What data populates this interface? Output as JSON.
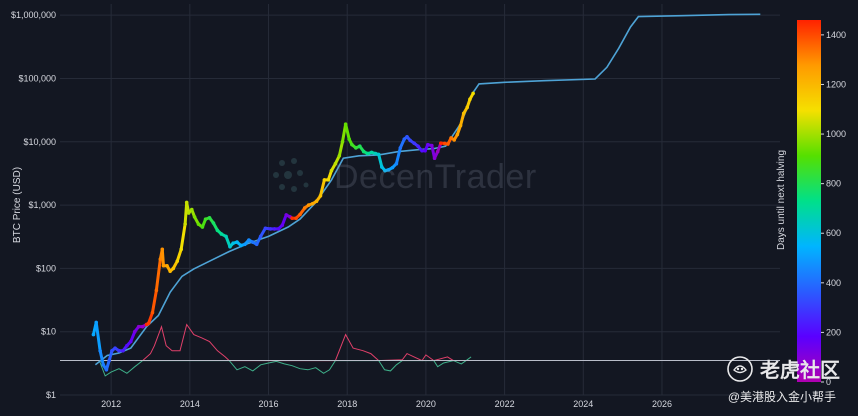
{
  "chart_data": {
    "type": "scatter",
    "title": "",
    "xlabel": "",
    "ylabel": "BTC Price (USD)",
    "yscale": "log",
    "xlim": [
      2010.7,
      2029.0
    ],
    "ylim": [
      1,
      1500000
    ],
    "x_ticks": [
      2012,
      2014,
      2016,
      2018,
      2020,
      2022,
      2024,
      2026
    ],
    "x_tick_labels": [
      "2012",
      "2014",
      "2016",
      "2018",
      "2020",
      "2022",
      "2024",
      "2026"
    ],
    "y_ticks": [
      1,
      10,
      100,
      1000,
      10000,
      100000,
      1000000
    ],
    "y_tick_labels": [
      "$1",
      "$10",
      "$100",
      "$1,000",
      "$10,000",
      "$100,000",
      "$1,000,000"
    ],
    "colorbar": {
      "label": "Days until next halving",
      "range": [
        0,
        1460
      ],
      "ticks": [
        0,
        200,
        400,
        600,
        800,
        1000,
        1200,
        1400
      ],
      "tick_labels": [
        "0",
        "200",
        "400",
        "600",
        "800",
        "1000",
        "1200",
        "1400"
      ],
      "colors": [
        "#b000b0",
        "#5a00ff",
        "#2a5cff",
        "#00b5ff",
        "#00e08a",
        "#55e000",
        "#f5e000",
        "#ff9a00",
        "#ff2200"
      ]
    },
    "series": [
      {
        "kind": "price_colored_by_days_until_halving",
        "points": [
          [
            2011.55,
            9,
            520
          ],
          [
            2011.62,
            14,
            500
          ],
          [
            2011.72,
            5,
            460
          ],
          [
            2011.8,
            3,
            430
          ],
          [
            2011.88,
            2.5,
            400
          ],
          [
            2011.95,
            3.5,
            370
          ],
          [
            2012.02,
            5,
            340
          ],
          [
            2012.1,
            5.5,
            310
          ],
          [
            2012.2,
            5,
            280
          ],
          [
            2012.3,
            5,
            240
          ],
          [
            2012.4,
            6,
            200
          ],
          [
            2012.5,
            7,
            160
          ],
          [
            2012.6,
            10,
            120
          ],
          [
            2012.7,
            12,
            80
          ],
          [
            2012.8,
            12,
            50
          ],
          [
            2012.9,
            13,
            1450
          ],
          [
            2012.95,
            13.5,
            1420
          ],
          [
            2013.05,
            20,
            1380
          ],
          [
            2013.15,
            45,
            1350
          ],
          [
            2013.25,
            140,
            1310
          ],
          [
            2013.3,
            200,
            1290
          ],
          [
            2013.33,
            110,
            1270
          ],
          [
            2013.42,
            110,
            1240
          ],
          [
            2013.5,
            90,
            1200
          ],
          [
            2013.58,
            100,
            1170
          ],
          [
            2013.68,
            130,
            1130
          ],
          [
            2013.78,
            200,
            1090
          ],
          [
            2013.88,
            500,
            1050
          ],
          [
            2013.92,
            1100,
            1040
          ],
          [
            2013.97,
            750,
            1020
          ],
          [
            2014.05,
            850,
            990
          ],
          [
            2014.12,
            650,
            960
          ],
          [
            2014.22,
            500,
            930
          ],
          [
            2014.32,
            450,
            890
          ],
          [
            2014.4,
            600,
            860
          ],
          [
            2014.5,
            630,
            820
          ],
          [
            2014.6,
            520,
            780
          ],
          [
            2014.7,
            400,
            740
          ],
          [
            2014.8,
            350,
            700
          ],
          [
            2014.92,
            320,
            660
          ],
          [
            2015.02,
            220,
            620
          ],
          [
            2015.1,
            250,
            590
          ],
          [
            2015.2,
            260,
            560
          ],
          [
            2015.3,
            230,
            530
          ],
          [
            2015.4,
            240,
            490
          ],
          [
            2015.5,
            280,
            460
          ],
          [
            2015.6,
            260,
            420
          ],
          [
            2015.7,
            240,
            390
          ],
          [
            2015.8,
            320,
            350
          ],
          [
            2015.92,
            430,
            310
          ],
          [
            2016.05,
            420,
            270
          ],
          [
            2016.15,
            420,
            230
          ],
          [
            2016.25,
            420,
            200
          ],
          [
            2016.35,
            480,
            160
          ],
          [
            2016.45,
            700,
            120
          ],
          [
            2016.55,
            650,
            80
          ],
          [
            2016.6,
            620,
            1440
          ],
          [
            2016.7,
            620,
            1400
          ],
          [
            2016.8,
            710,
            1360
          ],
          [
            2016.92,
            900,
            1320
          ],
          [
            2017.02,
            1000,
            1280
          ],
          [
            2017.12,
            1050,
            1240
          ],
          [
            2017.22,
            1150,
            1210
          ],
          [
            2017.32,
            1400,
            1170
          ],
          [
            2017.42,
            2500,
            1130
          ],
          [
            2017.52,
            2500,
            1100
          ],
          [
            2017.6,
            3500,
            1060
          ],
          [
            2017.7,
            4500,
            1030
          ],
          [
            2017.8,
            6000,
            990
          ],
          [
            2017.88,
            10000,
            960
          ],
          [
            2017.96,
            19000,
            930
          ],
          [
            2018.05,
            11000,
            900
          ],
          [
            2018.12,
            9000,
            870
          ],
          [
            2018.22,
            8000,
            840
          ],
          [
            2018.32,
            8500,
            800
          ],
          [
            2018.42,
            7000,
            760
          ],
          [
            2018.52,
            6500,
            720
          ],
          [
            2018.62,
            6800,
            690
          ],
          [
            2018.72,
            6500,
            650
          ],
          [
            2018.8,
            6300,
            620
          ],
          [
            2018.88,
            4000,
            590
          ],
          [
            2018.96,
            3500,
            560
          ],
          [
            2019.05,
            3600,
            520
          ],
          [
            2019.15,
            3900,
            490
          ],
          [
            2019.25,
            4500,
            450
          ],
          [
            2019.35,
            8000,
            410
          ],
          [
            2019.45,
            11000,
            380
          ],
          [
            2019.52,
            12000,
            350
          ],
          [
            2019.6,
            10500,
            320
          ],
          [
            2019.7,
            9500,
            290
          ],
          [
            2019.8,
            8500,
            250
          ],
          [
            2019.9,
            7200,
            210
          ],
          [
            2019.98,
            7200,
            180
          ],
          [
            2020.05,
            9000,
            150
          ],
          [
            2020.15,
            8700,
            110
          ],
          [
            2020.22,
            5500,
            80
          ],
          [
            2020.3,
            7000,
            40
          ],
          [
            2020.38,
            9500,
            1450
          ],
          [
            2020.48,
            9400,
            1400
          ],
          [
            2020.56,
            9200,
            1370
          ],
          [
            2020.64,
            11500,
            1330
          ],
          [
            2020.72,
            10700,
            1290
          ],
          [
            2020.8,
            13000,
            1250
          ],
          [
            2020.88,
            18000,
            1220
          ],
          [
            2020.96,
            28000,
            1180
          ],
          [
            2021.05,
            35000,
            1150
          ],
          [
            2021.12,
            47000,
            1120
          ],
          [
            2021.2,
            58000,
            1090
          ]
        ]
      },
      {
        "kind": "model_line",
        "color": "#4ea3d6",
        "points": [
          [
            2011.6,
            3,
            null
          ],
          [
            2011.9,
            4.2,
            null
          ],
          [
            2012.2,
            4.6,
            null
          ],
          [
            2012.5,
            5.5,
            null
          ],
          [
            2012.9,
            12,
            null
          ],
          [
            2013.2,
            18,
            null
          ],
          [
            2013.5,
            42,
            null
          ],
          [
            2013.8,
            75,
            null
          ],
          [
            2014.1,
            98,
            null
          ],
          [
            2014.5,
            130,
            null
          ],
          [
            2015.0,
            185,
            null
          ],
          [
            2015.5,
            250,
            null
          ],
          [
            2016.0,
            320,
            null
          ],
          [
            2016.5,
            450,
            null
          ],
          [
            2016.8,
            600,
            null
          ],
          [
            2017.2,
            1100,
            null
          ],
          [
            2017.6,
            2500,
            null
          ],
          [
            2017.9,
            5500,
            null
          ],
          [
            2018.3,
            6000,
            null
          ],
          [
            2018.8,
            6200,
            null
          ],
          [
            2019.3,
            7000,
            null
          ],
          [
            2019.8,
            7500,
            null
          ],
          [
            2020.2,
            7800,
            null
          ],
          [
            2020.5,
            8500,
            null
          ],
          [
            2020.9,
            20000,
            null
          ],
          [
            2021.2,
            60000,
            null
          ],
          [
            2021.35,
            82000,
            null
          ],
          [
            2022.0,
            87000,
            null
          ],
          [
            2023.0,
            92000,
            null
          ],
          [
            2024.3,
            98000,
            null
          ],
          [
            2024.6,
            150000,
            null
          ],
          [
            2024.9,
            300000,
            null
          ],
          [
            2025.2,
            650000,
            null
          ],
          [
            2025.4,
            950000,
            null
          ],
          [
            2026.5,
            980000,
            null
          ],
          [
            2027.7,
            1020000,
            null
          ],
          [
            2028.5,
            1030000,
            null
          ]
        ]
      },
      {
        "kind": "oscillator_above_baseline",
        "color": "#e0406a",
        "baseline": 3.5,
        "points": [
          [
            2012.8,
            3.5,
            null
          ],
          [
            2013.0,
            4.5,
            null
          ],
          [
            2013.1,
            6,
            null
          ],
          [
            2013.28,
            12,
            null
          ],
          [
            2013.4,
            6,
            null
          ],
          [
            2013.55,
            5,
            null
          ],
          [
            2013.75,
            5,
            null
          ],
          [
            2013.92,
            13,
            null
          ],
          [
            2014.1,
            9,
            null
          ],
          [
            2014.3,
            8,
            null
          ],
          [
            2014.5,
            7,
            null
          ],
          [
            2014.7,
            5,
            null
          ],
          [
            2014.9,
            4,
            null
          ],
          [
            2015.0,
            3.5,
            null
          ],
          [
            2017.7,
            3.5,
            null
          ],
          [
            2017.96,
            9,
            null
          ],
          [
            2018.15,
            5.5,
            null
          ],
          [
            2018.4,
            5,
            null
          ],
          [
            2018.6,
            4.5,
            null
          ],
          [
            2018.8,
            3.5,
            null
          ],
          [
            2019.4,
            3.6,
            null
          ],
          [
            2019.52,
            4.5,
            null
          ],
          [
            2019.7,
            4,
            null
          ],
          [
            2019.9,
            3.5,
            null
          ],
          [
            2020.0,
            4.3,
            null
          ],
          [
            2020.2,
            3.5,
            null
          ],
          [
            2020.55,
            4,
            null
          ],
          [
            2020.7,
            3.5,
            null
          ]
        ]
      },
      {
        "kind": "oscillator_below_baseline",
        "color": "#3fb08a",
        "baseline": 3.5,
        "points": [
          [
            2011.7,
            3.5,
            null
          ],
          [
            2011.85,
            2,
            null
          ],
          [
            2012.0,
            2.3,
            null
          ],
          [
            2012.2,
            2.6,
            null
          ],
          [
            2012.4,
            2.2,
            null
          ],
          [
            2012.6,
            2.8,
            null
          ],
          [
            2012.8,
            3.5,
            null
          ],
          [
            2015.0,
            3.5,
            null
          ],
          [
            2015.2,
            2.5,
            null
          ],
          [
            2015.4,
            2.8,
            null
          ],
          [
            2015.6,
            2.4,
            null
          ],
          [
            2015.8,
            3,
            null
          ],
          [
            2016.0,
            3.2,
            null
          ],
          [
            2016.2,
            3.4,
            null
          ],
          [
            2016.4,
            3.1,
            null
          ],
          [
            2016.6,
            2.9,
            null
          ],
          [
            2016.8,
            2.6,
            null
          ],
          [
            2017.0,
            2.5,
            null
          ],
          [
            2017.2,
            2.7,
            null
          ],
          [
            2017.4,
            2.2,
            null
          ],
          [
            2017.55,
            2.5,
            null
          ],
          [
            2017.7,
            3.5,
            null
          ],
          [
            2018.8,
            3.5,
            null
          ],
          [
            2018.95,
            2.5,
            null
          ],
          [
            2019.1,
            2.4,
            null
          ],
          [
            2019.25,
            3,
            null
          ],
          [
            2019.4,
            3.5,
            null
          ],
          [
            2020.2,
            3.5,
            null
          ],
          [
            2020.3,
            2.8,
            null
          ],
          [
            2020.45,
            3.2,
            null
          ],
          [
            2020.7,
            3.5,
            null
          ],
          [
            2020.9,
            3.1,
            null
          ],
          [
            2021.05,
            3.6,
            null
          ],
          [
            2021.15,
            4,
            null
          ]
        ]
      }
    ],
    "reference_line": {
      "y": 3.5,
      "color": "#b9bdc9"
    },
    "legend": "none",
    "grid": true
  },
  "watermark": {
    "text": "DecenTrader"
  },
  "brand": {
    "name": "老虎社区",
    "sub": "@美港股入金小帮手"
  },
  "colors": {
    "background": "#131722",
    "grid": "#262b38",
    "text": "#d6d8df"
  }
}
